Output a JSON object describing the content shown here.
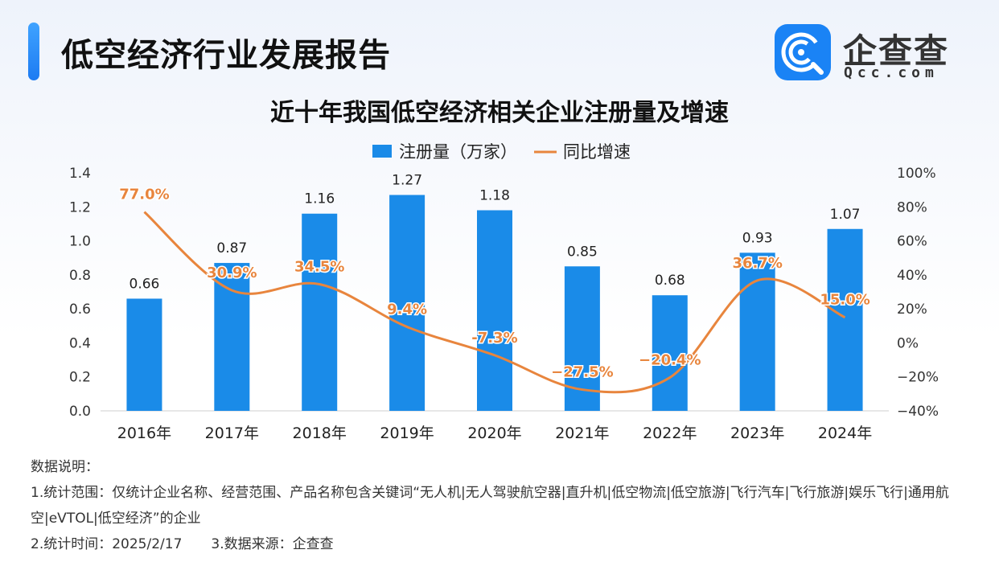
{
  "header": {
    "title": "低空经济行业发展报告"
  },
  "brand": {
    "name": "企查查",
    "sub": "Qcc.com",
    "color": "#1a83f5"
  },
  "chart_data": {
    "type": "bar",
    "title": "近十年我国低空经济相关企业注册量及增速",
    "categories": [
      "2016年",
      "2017年",
      "2018年",
      "2019年",
      "2020年",
      "2021年",
      "2022年",
      "2023年",
      "2024年"
    ],
    "series": [
      {
        "name": "注册量（万家）",
        "type": "bar",
        "axis": "left",
        "color": "#1a8be8",
        "values": [
          0.66,
          0.87,
          1.16,
          1.27,
          1.18,
          0.85,
          0.68,
          0.93,
          1.07
        ],
        "labels": [
          "0.66",
          "0.87",
          "1.16",
          "1.27",
          "1.18",
          "0.85",
          "0.68",
          "0.93",
          "1.07"
        ]
      },
      {
        "name": "同比增速",
        "type": "line",
        "axis": "right",
        "color": "#e8853d",
        "values": [
          77.0,
          30.9,
          34.5,
          9.4,
          -7.3,
          -27.5,
          -20.4,
          36.7,
          15.0
        ],
        "labels": [
          "77.0%",
          "30.9%",
          "34.5%",
          "9.4%",
          "-7.3%",
          "−27.5%",
          "−20.4%",
          "36.7%",
          "15.0%"
        ]
      }
    ],
    "left_axis": {
      "ylim": [
        0,
        1.4
      ],
      "ticks": [
        "0.0",
        "0.2",
        "0.4",
        "0.6",
        "0.8",
        "1.0",
        "1.2",
        "1.4"
      ]
    },
    "right_axis": {
      "ylim": [
        -40,
        100
      ],
      "ticks": [
        "−40%",
        "−20%",
        "0%",
        "20%",
        "40%",
        "60%",
        "80%",
        "100%"
      ]
    },
    "legend_position": "top-center",
    "grid": false
  },
  "notes": {
    "heading": "数据说明：",
    "line1": "1.统计范围：仅统计企业名称、经营范围、产品名称包含关键词“无人机|无人驾驶航空器|直升机|低空物流|低空旅游|飞行汽车|飞行旅游|娱乐飞行|通用航空|eVTOL|低空经济”的企业",
    "line2": "2.统计时间：2025/2/17",
    "line3": "3.数据来源：企查查"
  }
}
